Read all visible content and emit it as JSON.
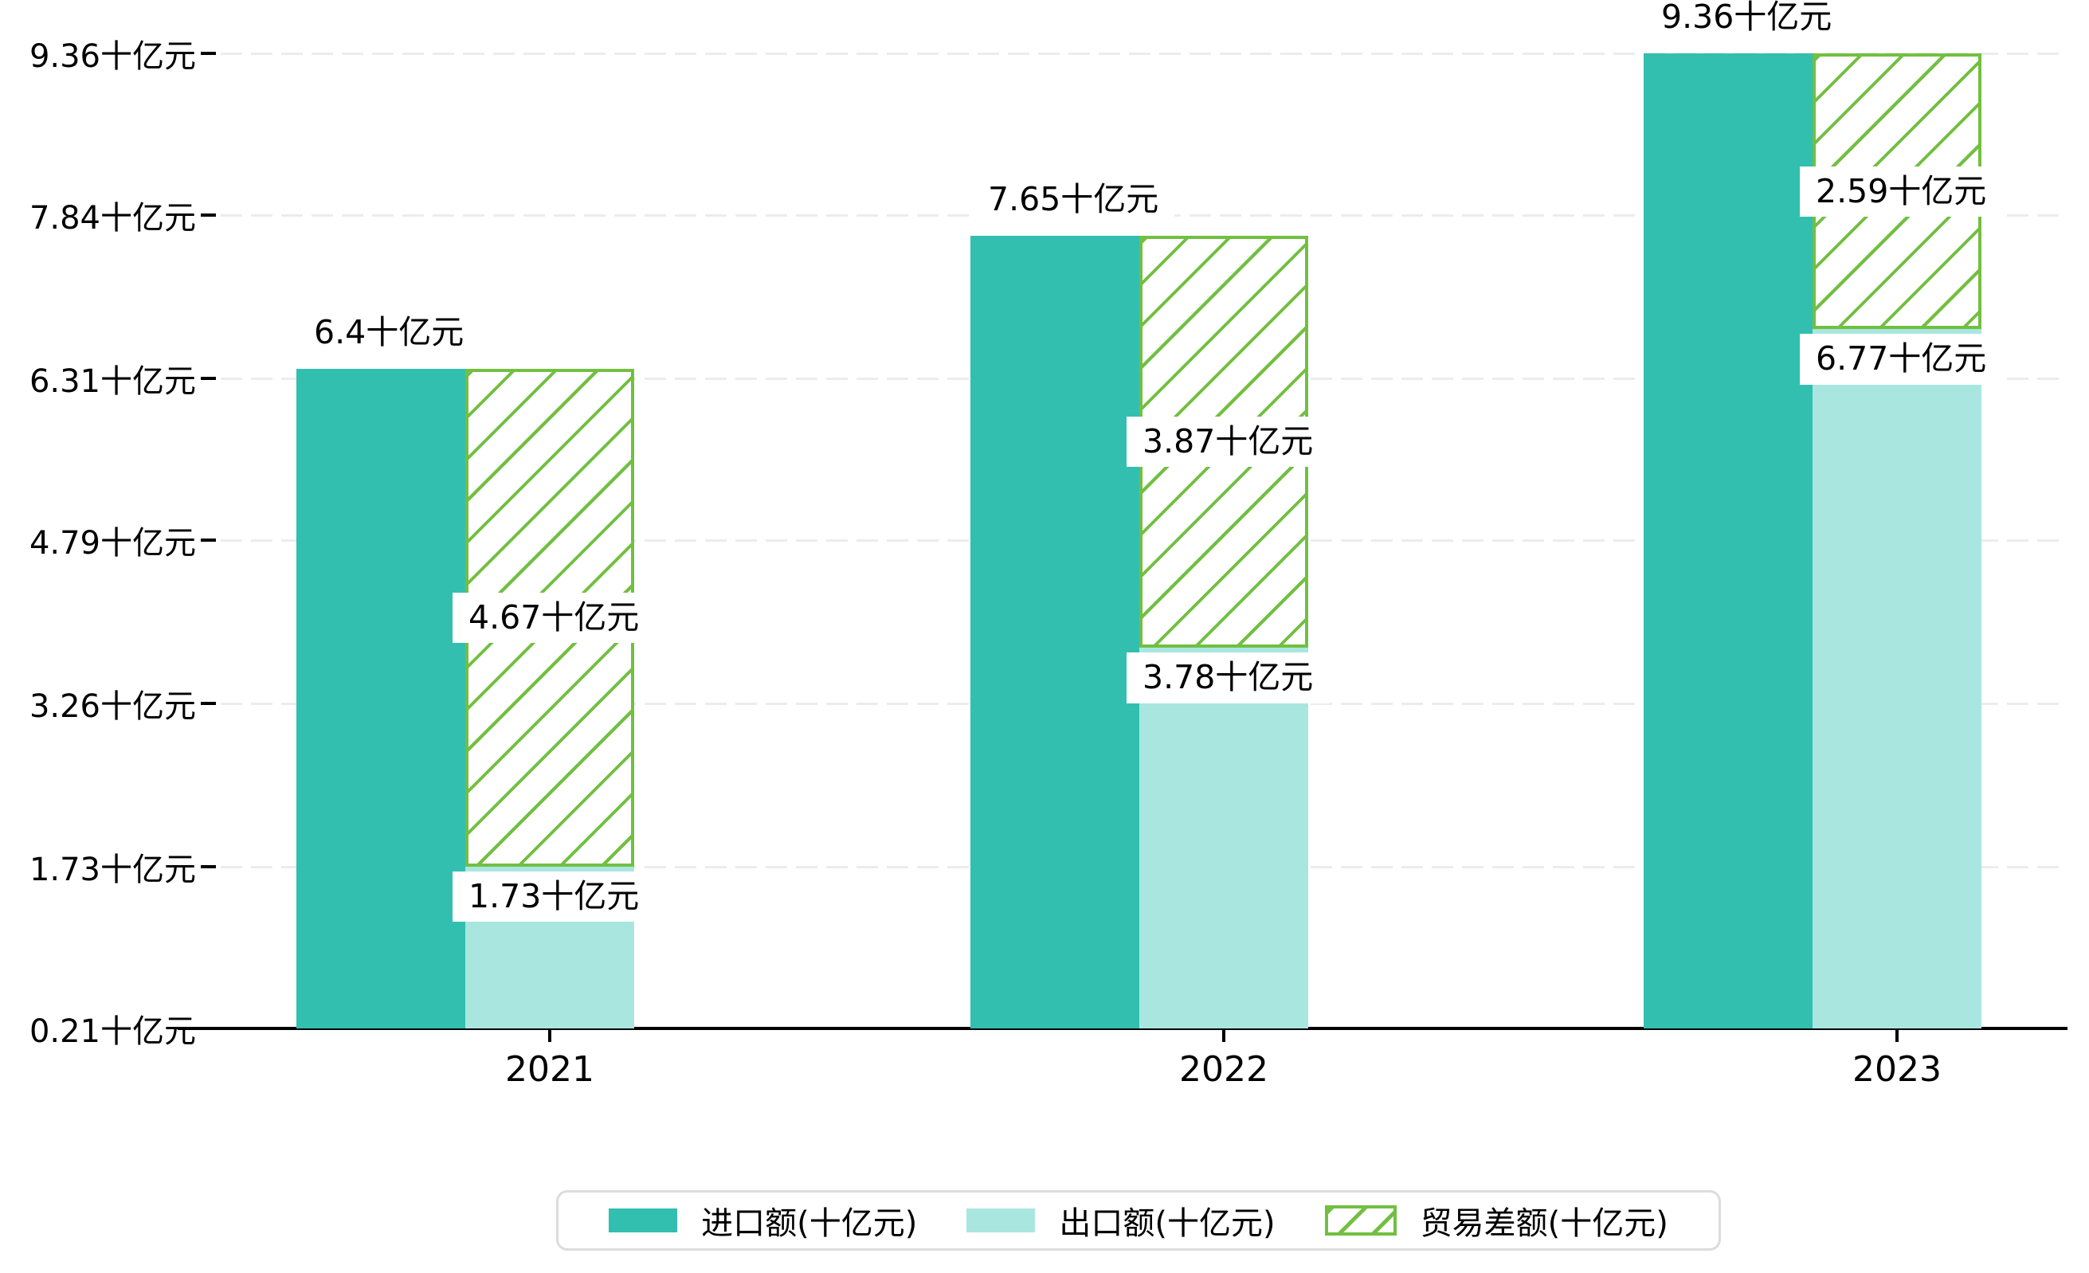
{
  "chart_data": {
    "type": "bar",
    "title": "",
    "unit": "十亿元",
    "categories": [
      "2021",
      "2022",
      "2023"
    ],
    "series": [
      {
        "name": "进口额(十亿元)",
        "role": "import",
        "color": "#32bfb0",
        "values": [
          6.4,
          7.65,
          9.36
        ],
        "labels": [
          "6.4十亿元",
          "7.65十亿元",
          "9.36十亿元"
        ]
      },
      {
        "name": "出口额(十亿元)",
        "role": "export",
        "color": "#a9e6e0",
        "values": [
          1.73,
          3.78,
          6.77
        ],
        "labels": [
          "1.73十亿元",
          "3.78十亿元",
          "6.77十亿元"
        ]
      },
      {
        "name": "贸易差额(十亿元)",
        "role": "trade-difference",
        "color": "#72bf41",
        "style": "hatched",
        "span": "export-to-import",
        "values": [
          4.67,
          3.87,
          2.59
        ],
        "labels": [
          "4.67十亿元",
          "3.87十亿元",
          "2.59十亿元"
        ]
      }
    ],
    "y_axis": {
      "min": 0.21,
      "max": 9.36,
      "tick_values": [
        0.21,
        1.73,
        3.26,
        4.79,
        6.31,
        7.84,
        9.36
      ],
      "tick_labels": [
        "0.21十亿元",
        "1.73十亿元",
        "3.26十亿元",
        "4.79十亿元",
        "6.31十亿元",
        "7.84十亿元",
        "9.36十亿元"
      ]
    },
    "grid": true,
    "legend_position": "bottom",
    "colors": {
      "axis": "#000000",
      "gridline": "#ececec",
      "label_text": "#000000",
      "legend_border": "#dcdcdc",
      "background": "#ffffff"
    }
  }
}
